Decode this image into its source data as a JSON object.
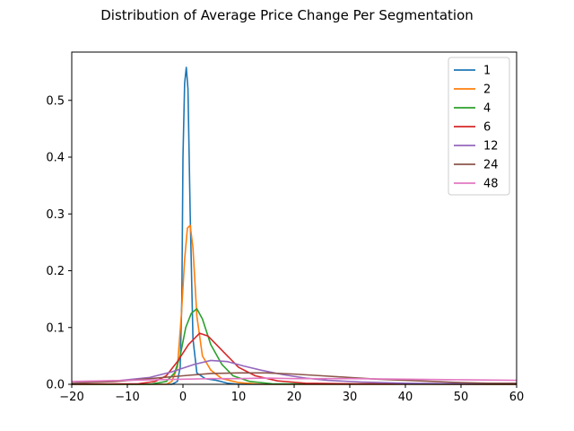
{
  "chart_data": {
    "type": "line",
    "title": "Distribution of Average Price Change Per Segmentation",
    "xlabel": "",
    "ylabel": "",
    "xlim": [
      -20,
      60
    ],
    "ylim": [
      0,
      0.585
    ],
    "x_ticks": [
      -20,
      -10,
      0,
      10,
      20,
      30,
      40,
      50,
      60
    ],
    "y_ticks": [
      0.0,
      0.1,
      0.2,
      0.3,
      0.4,
      0.5
    ],
    "grid": false,
    "legend": "top-right",
    "series": [
      {
        "name": "1",
        "color": "#1f77b4",
        "points": [
          [
            -20,
            0
          ],
          [
            -2,
            0
          ],
          [
            -1,
            0.005
          ],
          [
            -0.5,
            0.03
          ],
          [
            -0.2,
            0.15
          ],
          [
            0,
            0.4
          ],
          [
            0.3,
            0.53
          ],
          [
            0.6,
            0.558
          ],
          [
            0.9,
            0.52
          ],
          [
            1.3,
            0.3
          ],
          [
            1.8,
            0.08
          ],
          [
            2.5,
            0.02
          ],
          [
            4,
            0.01
          ],
          [
            6,
            0.007
          ],
          [
            8,
            0.002
          ],
          [
            10,
            0
          ],
          [
            60,
            0
          ]
        ]
      },
      {
        "name": "2",
        "color": "#ff7f0e",
        "points": [
          [
            -20,
            0
          ],
          [
            -3,
            0
          ],
          [
            -2,
            0.005
          ],
          [
            -1,
            0.03
          ],
          [
            -0.3,
            0.12
          ],
          [
            0.3,
            0.22
          ],
          [
            0.8,
            0.275
          ],
          [
            1.3,
            0.28
          ],
          [
            1.8,
            0.24
          ],
          [
            2.5,
            0.12
          ],
          [
            3.5,
            0.05
          ],
          [
            5,
            0.025
          ],
          [
            7,
            0.01
          ],
          [
            10,
            0.003
          ],
          [
            14,
            0
          ],
          [
            60,
            0
          ]
        ]
      },
      {
        "name": "4",
        "color": "#2ca02c",
        "points": [
          [
            -20,
            0
          ],
          [
            -6,
            0
          ],
          [
            -3,
            0.005
          ],
          [
            -1.5,
            0.02
          ],
          [
            -0.5,
            0.05
          ],
          [
            0.5,
            0.1
          ],
          [
            1.5,
            0.125
          ],
          [
            2.5,
            0.133
          ],
          [
            3.5,
            0.115
          ],
          [
            5,
            0.07
          ],
          [
            7,
            0.035
          ],
          [
            9,
            0.015
          ],
          [
            12,
            0.005
          ],
          [
            16,
            0.001
          ],
          [
            60,
            0
          ]
        ]
      },
      {
        "name": "6",
        "color": "#d62728",
        "points": [
          [
            -20,
            0
          ],
          [
            -8,
            0.001
          ],
          [
            -5,
            0.005
          ],
          [
            -3,
            0.015
          ],
          [
            -1,
            0.04
          ],
          [
            1,
            0.07
          ],
          [
            3,
            0.09
          ],
          [
            4.5,
            0.085
          ],
          [
            6,
            0.07
          ],
          [
            8,
            0.05
          ],
          [
            10,
            0.03
          ],
          [
            13,
            0.015
          ],
          [
            17,
            0.006
          ],
          [
            22,
            0.002
          ],
          [
            30,
            0.001
          ],
          [
            60,
            0
          ]
        ]
      },
      {
        "name": "12",
        "color": "#9467bd",
        "points": [
          [
            -20,
            0.002
          ],
          [
            -12,
            0.006
          ],
          [
            -6,
            0.012
          ],
          [
            -2,
            0.022
          ],
          [
            2,
            0.035
          ],
          [
            5,
            0.042
          ],
          [
            8,
            0.04
          ],
          [
            11,
            0.032
          ],
          [
            14,
            0.025
          ],
          [
            18,
            0.017
          ],
          [
            22,
            0.011
          ],
          [
            26,
            0.007
          ],
          [
            32,
            0.004
          ],
          [
            40,
            0.002
          ],
          [
            50,
            0.001
          ],
          [
            60,
            0.001
          ]
        ]
      },
      {
        "name": "24",
        "color": "#8c564b",
        "points": [
          [
            -20,
            0.002
          ],
          [
            -12,
            0.005
          ],
          [
            -6,
            0.01
          ],
          [
            0,
            0.015
          ],
          [
            5,
            0.019
          ],
          [
            10,
            0.02
          ],
          [
            15,
            0.02
          ],
          [
            20,
            0.018
          ],
          [
            25,
            0.015
          ],
          [
            30,
            0.012
          ],
          [
            35,
            0.009
          ],
          [
            40,
            0.007
          ],
          [
            45,
            0.005
          ],
          [
            50,
            0.003
          ],
          [
            55,
            0.002
          ],
          [
            60,
            0.002
          ]
        ]
      },
      {
        "name": "48",
        "color": "#e377c2",
        "points": [
          [
            -20,
            0.005
          ],
          [
            -15,
            0.006
          ],
          [
            -10,
            0.007
          ],
          [
            -5,
            0.008
          ],
          [
            0,
            0.009
          ],
          [
            5,
            0.01
          ],
          [
            10,
            0.01
          ],
          [
            15,
            0.011
          ],
          [
            20,
            0.01
          ],
          [
            30,
            0.01
          ],
          [
            40,
            0.009
          ],
          [
            50,
            0.008
          ],
          [
            60,
            0.007
          ]
        ]
      }
    ]
  }
}
